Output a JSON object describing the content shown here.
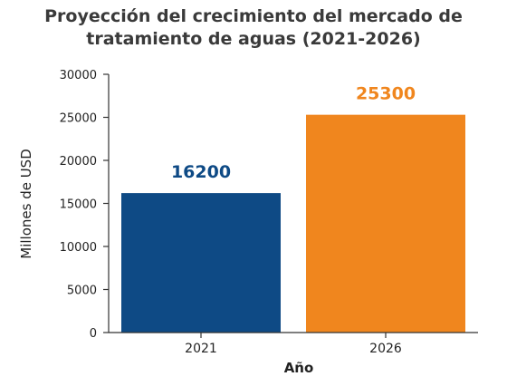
{
  "chart_data": {
    "type": "bar",
    "title_lines": [
      "Proyección del crecimiento del mercado de",
      "tratamiento de aguas (2021-2026)"
    ],
    "categories": [
      "2021",
      "2026"
    ],
    "values": [
      16200,
      25300
    ],
    "data_labels": [
      "16200",
      "25300"
    ],
    "colors": [
      "#0e4a85",
      "#f0861e"
    ],
    "xlabel": "Año",
    "ylabel": "Millones de USD",
    "ylim": [
      0,
      30000
    ],
    "yticks": [
      "0",
      "5000",
      "10000",
      "15000",
      "20000",
      "25000",
      "30000"
    ],
    "grid": false,
    "legend": "none"
  }
}
